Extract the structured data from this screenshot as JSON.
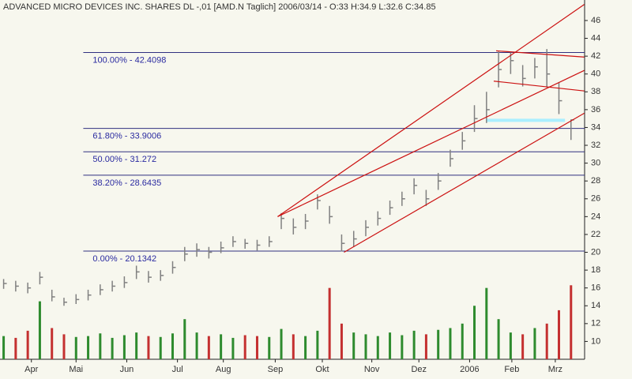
{
  "chart_data": {
    "type": "hlc",
    "title": "ADVANCED MICRO DEVICES INC. SHARES DL -,01 [AMD.N  Taglich] 2006/03/14 - O:33 H:34.9 L:32.6 C:34.85",
    "xlim": [
      -0.3,
      47.8
    ],
    "ylim": [
      8,
      48.3
    ],
    "yticks": [
      10,
      12,
      14,
      16,
      18,
      20,
      22,
      24,
      26,
      28,
      30,
      32,
      34,
      36,
      38,
      40,
      42,
      44,
      46
    ],
    "xticks": [
      {
        "value": 2.3,
        "label": "Apr"
      },
      {
        "value": 6.0,
        "label": "Mai"
      },
      {
        "value": 10.2,
        "label": "Jun"
      },
      {
        "value": 14.4,
        "label": "Jul"
      },
      {
        "value": 18.2,
        "label": "Aug"
      },
      {
        "value": 22.5,
        "label": "Sep"
      },
      {
        "value": 26.4,
        "label": "Okt"
      },
      {
        "value": 30.5,
        "label": "Nov"
      },
      {
        "value": 34.4,
        "label": "Dez"
      },
      {
        "value": 38.6,
        "label": "2006"
      },
      {
        "value": 42.1,
        "label": "Feb"
      },
      {
        "value": 45.7,
        "label": "Mrz"
      }
    ],
    "bar_color": "#808080",
    "high": [
      17.0,
      16.8,
      16.6,
      17.8,
      15.8,
      14.9,
      15.3,
      15.8,
      16.4,
      16.8,
      17.3,
      18.5,
      17.9,
      18.0,
      19.0,
      20.6,
      21.0,
      20.6,
      21.2,
      21.8,
      21.5,
      21.4,
      21.8,
      24.4,
      23.8,
      24.3,
      26.5,
      25.2,
      22.0,
      22.4,
      23.6,
      24.6,
      25.8,
      26.8,
      28.3,
      27.0,
      28.9,
      31.5,
      33.5,
      36.5,
      38.0,
      42.5,
      42.4,
      41.0,
      41.8,
      42.8,
      39.0,
      34.9
    ],
    "low": [
      15.9,
      15.6,
      15.4,
      16.4,
      14.5,
      14.0,
      14.2,
      14.6,
      15.2,
      15.6,
      16.0,
      17.0,
      16.6,
      16.8,
      17.6,
      19.0,
      19.5,
      19.3,
      19.9,
      20.6,
      20.4,
      20.2,
      20.6,
      22.6,
      22.0,
      22.6,
      24.8,
      23.2,
      20.1,
      20.6,
      21.8,
      23.0,
      24.2,
      25.2,
      26.5,
      25.2,
      27.0,
      29.6,
      31.5,
      33.5,
      34.5,
      38.5,
      40.0,
      38.6,
      39.5,
      38.5,
      35.5,
      32.6
    ],
    "close": [
      16.5,
      16.2,
      16.0,
      17.2,
      15.0,
      14.4,
      14.7,
      15.2,
      15.8,
      16.2,
      16.6,
      17.8,
      17.2,
      17.4,
      18.3,
      19.8,
      20.3,
      20.0,
      20.5,
      21.2,
      21.0,
      20.8,
      21.2,
      23.8,
      22.8,
      23.5,
      25.8,
      24.0,
      21.0,
      21.5,
      22.8,
      23.8,
      25.0,
      26.0,
      27.5,
      26.0,
      28.0,
      30.5,
      32.5,
      35.0,
      36.0,
      40.5,
      41.5,
      39.5,
      40.8,
      40.0,
      37.0,
      34.85
    ],
    "volume": [
      10.6,
      10.4,
      11.2,
      14.5,
      11.5,
      10.8,
      10.5,
      10.6,
      10.9,
      10.4,
      10.7,
      11.0,
      10.6,
      10.5,
      10.9,
      12.5,
      11.0,
      10.6,
      10.8,
      10.4,
      10.7,
      10.6,
      10.5,
      11.4,
      10.8,
      10.6,
      11.2,
      16.0,
      12.0,
      11.0,
      10.8,
      10.6,
      11.0,
      10.7,
      11.2,
      10.8,
      11.3,
      11.5,
      12.0,
      14.0,
      16.0,
      12.5,
      11.0,
      10.8,
      11.5,
      12.0,
      13.5,
      16.3
    ],
    "volume_up_color": "#2e8b2e",
    "volume_down_color": "#c43030",
    "fib_color": "#303080",
    "fib_levels": [
      {
        "value": 42.4098,
        "label": "100.00% - 42.4098"
      },
      {
        "value": 33.9006,
        "label": "61.80% - 33.9006"
      },
      {
        "value": 31.272,
        "label": "50.00% - 31.272"
      },
      {
        "value": 28.6435,
        "label": "38.20% - 28.6435"
      },
      {
        "value": 20.1342,
        "label": "0.00% - 20.1342"
      }
    ],
    "fib_start": 6.6,
    "trend_color": "#cc1111",
    "trendlines": [
      {
        "x": [
          22.7,
          48.1
        ],
        "y": [
          24.0,
          47.8
        ]
      },
      {
        "x": [
          22.7,
          48.1
        ],
        "y": [
          24.0,
          40.4
        ]
      },
      {
        "x": [
          28.2,
          48.1
        ],
        "y": [
          20.0,
          35.6
        ]
      },
      {
        "x": [
          40.8,
          48.1
        ],
        "y": [
          42.6,
          41.9
        ]
      },
      {
        "x": [
          40.6,
          48.1
        ],
        "y": [
          39.2,
          38.1
        ]
      }
    ],
    "support": {
      "x": [
        40.0,
        46.5
      ],
      "y": [
        34.8,
        34.8
      ],
      "color": "#aaeeff"
    }
  }
}
